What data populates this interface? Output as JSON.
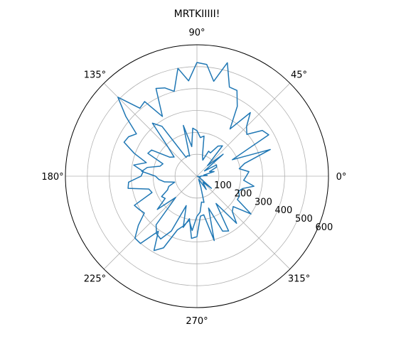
{
  "chart_data": {
    "type": "line",
    "projection": "polar",
    "title": "MRTKIIIII!",
    "theta_ticks_deg": [
      0,
      45,
      90,
      135,
      180,
      225,
      270,
      315
    ],
    "theta_tick_labels": [
      "0°",
      "45°",
      "90°",
      "135°",
      "180°",
      "225°",
      "270°",
      "315°"
    ],
    "r_ticks": [
      100,
      200,
      300,
      400,
      500,
      600
    ],
    "r_tick_labels": [
      "100",
      "200",
      "300",
      "400",
      "500",
      "600"
    ],
    "rlim": [
      0,
      600
    ],
    "grid": true,
    "series": [
      {
        "color": "#1f77b4",
        "theta_deg": [
          0,
          5,
          10,
          15,
          20,
          25,
          30,
          35,
          40,
          45,
          50,
          55,
          60,
          65,
          70,
          75,
          80,
          85,
          90,
          95,
          100,
          105,
          110,
          115,
          120,
          125,
          130,
          135,
          140,
          145,
          150,
          155,
          160,
          165,
          170,
          175,
          180,
          185,
          190,
          195,
          200,
          205,
          210,
          215,
          220,
          225,
          230,
          235,
          240,
          245,
          250,
          255,
          260,
          265,
          270,
          275,
          280,
          285,
          290,
          295,
          300,
          305,
          310,
          315,
          320,
          325,
          330,
          335,
          340,
          345,
          350,
          355,
          360,
          365,
          370,
          375,
          380,
          385,
          390,
          395,
          400,
          405,
          410,
          415,
          420,
          425,
          430,
          435,
          440,
          445,
          450,
          455,
          460,
          465,
          470,
          475,
          480,
          485,
          490,
          495,
          500,
          505,
          510,
          515,
          520,
          525,
          530,
          535,
          540,
          545,
          550,
          555,
          560,
          565,
          570,
          575,
          580,
          585,
          590,
          595,
          600,
          605,
          610,
          615,
          620,
          625,
          630,
          635,
          640,
          645,
          650,
          655,
          660,
          665,
          670,
          675,
          680,
          685,
          690,
          695,
          700,
          705,
          710,
          715
        ],
        "r": [
          15,
          47,
          32,
          81,
          61,
          99,
          103,
          42,
          156,
          68,
          181,
          168,
          123,
          126,
          78,
          97,
          186,
          177,
          208,
          220,
          137,
          240,
          98,
          103,
          99,
          278,
          316,
          184,
          136,
          151,
          239,
          247,
          165,
          175,
          230,
          253,
          189,
          174,
          150,
          105,
          137,
          148,
          186,
          177,
          236,
          137,
          290,
          321,
          331,
          276,
          143,
          242,
          197,
          285,
          276,
          183,
          179,
          304,
          155,
          277,
          289,
          152,
          281,
          228,
          216,
          301,
          213,
          214,
          201,
          217,
          264,
          214,
          225,
          238,
          196,
          225,
          356,
          178,
          378,
          364,
          297,
          320,
          379,
          263,
          368,
          432,
          433,
          536,
          440,
          512,
          519,
          437,
          500,
          401,
          429,
          442,
          315,
          416,
          405,
          510,
          423,
          337,
          360,
          367,
          304,
          239,
          293,
          246,
          255,
          313,
          319,
          227,
          218,
          315,
          304,
          293,
          349,
          400,
          401,
          307,
          392,
          361,
          261,
          234,
          204,
          249,
          183,
          165,
          120,
          124,
          50,
          22,
          16,
          74,
          48,
          39,
          86,
          28,
          13,
          12,
          13,
          3,
          17,
          17
        ]
      }
    ]
  }
}
